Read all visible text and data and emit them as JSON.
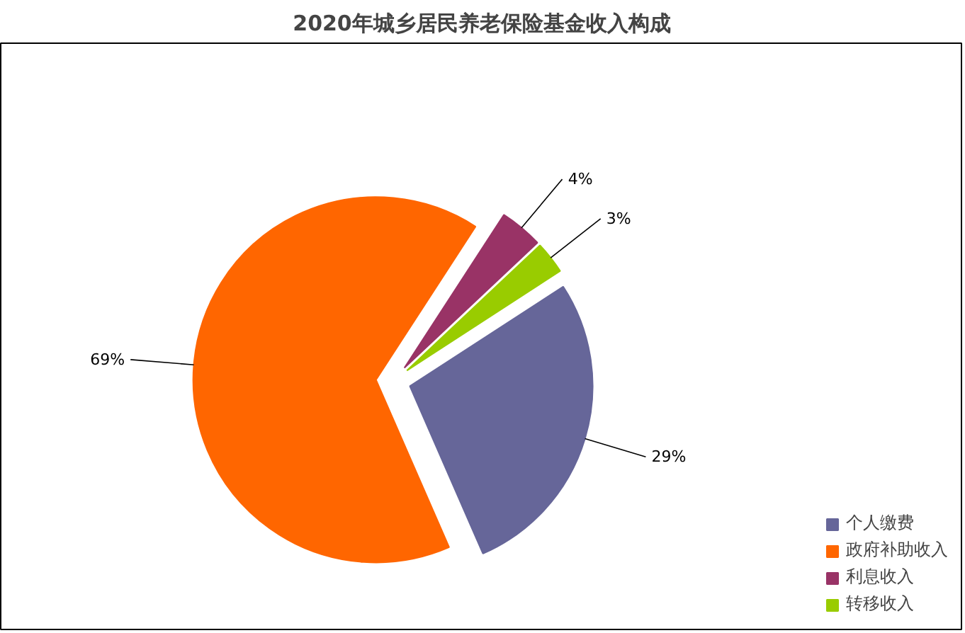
{
  "chart_data": {
    "type": "pie",
    "title": "2020年城乡居民养老保险基金收入构成",
    "categories": [
      "个人缴费",
      "政府补助收入",
      "利息收入",
      "转移收入"
    ],
    "values": [
      29,
      69,
      4,
      3
    ],
    "colors": [
      "#666699",
      "#ff6600",
      "#993366",
      "#99cc00"
    ],
    "value_labels": [
      "29%",
      "69%",
      "4%",
      "3%"
    ],
    "legend": "bottom right"
  }
}
